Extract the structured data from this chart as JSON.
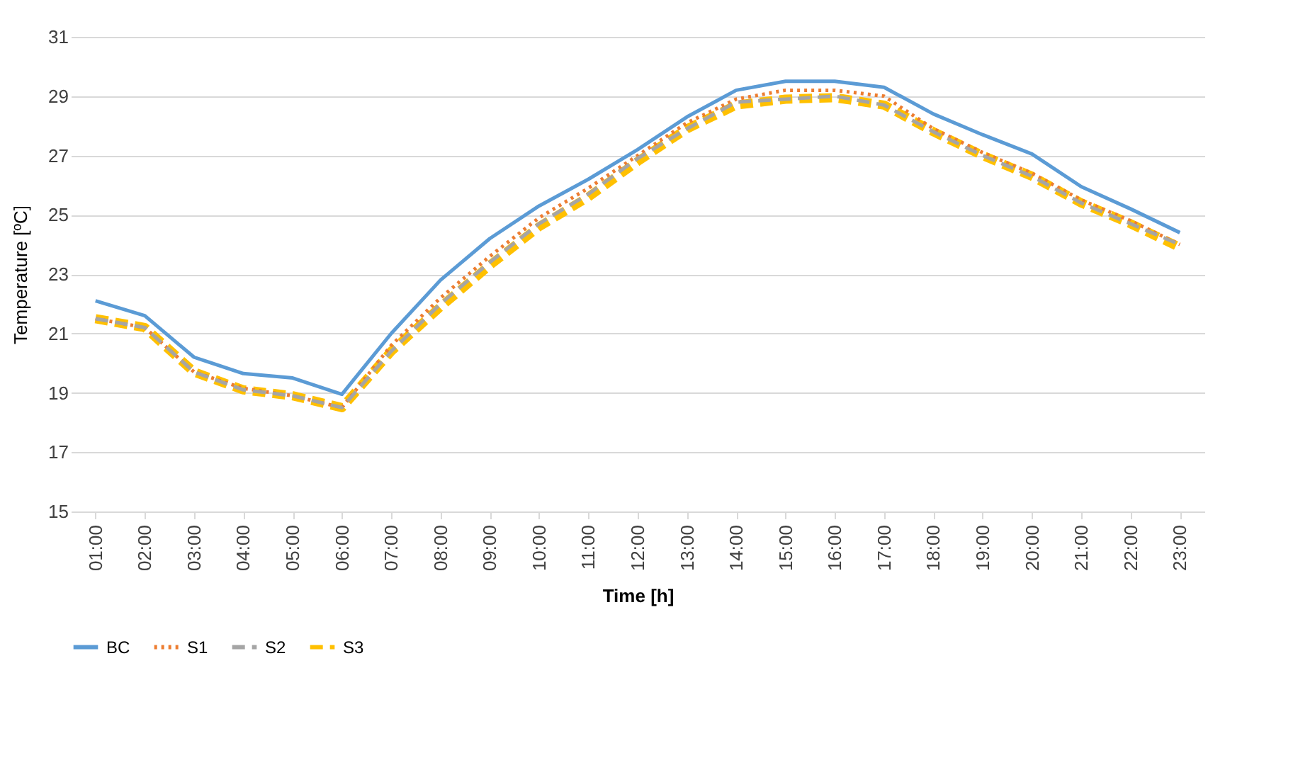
{
  "chart_data": {
    "type": "line",
    "xlabel": "Time [h]",
    "ylabel": "Temperature [ºC]",
    "categories": [
      "01:00",
      "02:00",
      "03:00",
      "04:00",
      "05:00",
      "06:00",
      "07:00",
      "08:00",
      "09:00",
      "10:00",
      "11:00",
      "12:00",
      "13:00",
      "14:00",
      "15:00",
      "16:00",
      "17:00",
      "18:00",
      "19:00",
      "20:00",
      "21:00",
      "22:00",
      "23:00"
    ],
    "series": [
      {
        "name": "BC",
        "color": "#5b9bd5",
        "line_style": "solid",
        "values": [
          22.1,
          21.6,
          20.2,
          19.65,
          19.5,
          18.95,
          21.0,
          22.8,
          24.2,
          25.3,
          26.2,
          27.2,
          28.3,
          29.2,
          29.5,
          29.5,
          29.3,
          28.4,
          27.7,
          27.05,
          25.95,
          25.2,
          24.4
        ]
      },
      {
        "name": "S1",
        "color": "#ed7d31",
        "line_style": "dotted",
        "values": [
          21.5,
          21.2,
          19.7,
          19.15,
          18.9,
          18.5,
          20.6,
          22.2,
          23.6,
          24.9,
          25.9,
          27.0,
          28.1,
          28.9,
          29.2,
          29.2,
          29.0,
          27.9,
          27.1,
          26.4,
          25.5,
          24.8,
          24.0
        ]
      },
      {
        "name": "S2",
        "color": "#a5a5a5",
        "line_style": "dashed",
        "values": [
          21.5,
          21.2,
          19.7,
          19.1,
          18.9,
          18.5,
          20.4,
          22.0,
          23.4,
          24.7,
          25.7,
          26.9,
          27.9,
          28.8,
          28.9,
          29.0,
          28.7,
          27.8,
          27.0,
          26.3,
          25.4,
          24.7,
          24.0
        ]
      },
      {
        "name": "S3",
        "color": "#ffc000",
        "line_style": "dashed",
        "values": [
          21.5,
          21.2,
          19.7,
          19.1,
          18.9,
          18.5,
          20.4,
          21.9,
          23.3,
          24.6,
          25.6,
          26.8,
          27.9,
          28.7,
          28.9,
          28.95,
          28.7,
          27.8,
          27.0,
          26.3,
          25.4,
          24.7,
          23.9
        ]
      }
    ],
    "ylim": [
      15,
      31
    ],
    "yticks": [
      15,
      17,
      19,
      21,
      23,
      25,
      27,
      29,
      31
    ],
    "grid": "y",
    "legend": "bottom",
    "marker": "none"
  }
}
